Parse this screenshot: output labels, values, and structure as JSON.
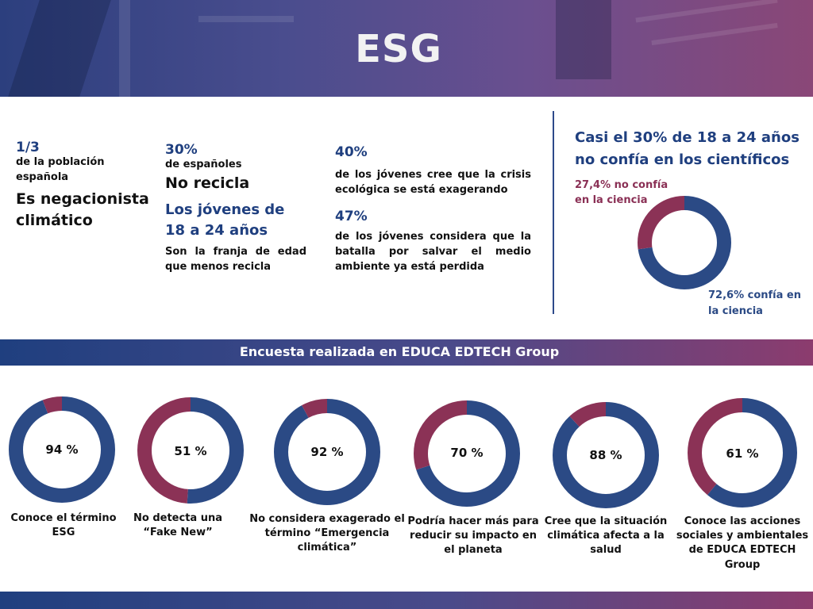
{
  "header": {
    "title": "ESG"
  },
  "stats": {
    "s1": {
      "value": "1/3",
      "desc": "de la población española",
      "headline": "Es negacionista climático"
    },
    "s2": {
      "value": "30%",
      "desc": "de españoles",
      "headline": "No recicla",
      "headline2": "Los jóvenes de 18 a 24 años",
      "desc2": "Son la franja de edad que menos recicla"
    },
    "s3": {
      "value": "40%",
      "desc": "de los jóvenes cree que la crisis ecológica se está exagerando",
      "value2": "47%",
      "desc2": "de los jóvenes considera que la batalla por salvar el medio ambiente ya está perdida"
    },
    "science": {
      "title": "Casi el 30% de 18 a 24 años no confía en los científicos",
      "no_trust_label": "27,4% no confía en la ciencia",
      "trust_label": "72,6% confía en la ciencia"
    }
  },
  "banner": {
    "text": "Encuesta realizada en EDUCA EDTECH Group"
  },
  "colors": {
    "blue": "#2b4a85",
    "red": "#8b3256",
    "accent_blue": "#1f3f7f"
  },
  "chart_data": [
    {
      "type": "pie",
      "title": "Casi el 30% de 18 a 24 años no confía en los científicos",
      "categories": [
        "confía en la ciencia",
        "no confía en la ciencia"
      ],
      "values": [
        72.6,
        27.4
      ]
    },
    {
      "type": "pie",
      "label": "94 %",
      "caption": "Conoce el término ESG",
      "values": [
        94,
        6
      ]
    },
    {
      "type": "pie",
      "label": "51 %",
      "caption": "No detecta una “Fake New”",
      "values": [
        51,
        49
      ]
    },
    {
      "type": "pie",
      "label": "92 %",
      "caption": "No considera exagerado el término “Emergencia climática”",
      "values": [
        92,
        8
      ]
    },
    {
      "type": "pie",
      "label": "70 %",
      "caption": "Podría hacer más para reducir su impacto en el planeta",
      "values": [
        70,
        30
      ]
    },
    {
      "type": "pie",
      "label": "88 %",
      "caption": "Cree que la situación climática afecta a la salud",
      "values": [
        88,
        12
      ]
    },
    {
      "type": "pie",
      "label": "61 %",
      "caption": "Conoce las acciones sociales y ambientales de EDUCA EDTECH Group",
      "values": [
        61,
        39
      ]
    }
  ]
}
